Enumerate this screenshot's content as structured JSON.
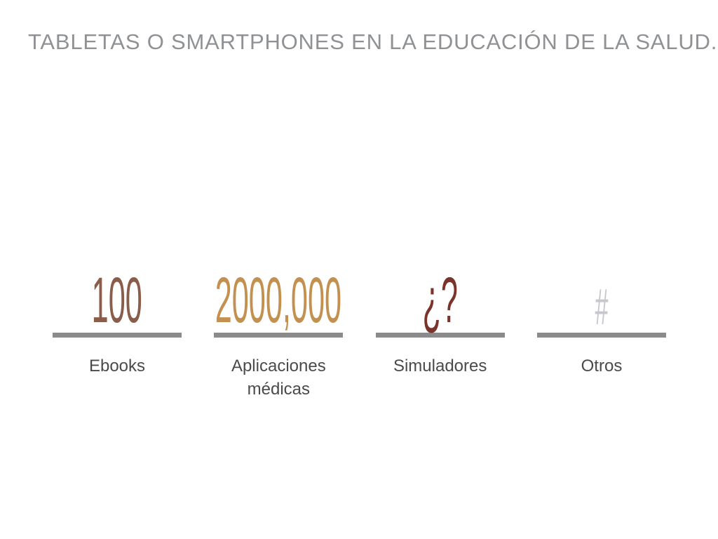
{
  "slide": {
    "title": "TABLETAS O SMARTPHONES EN LA EDUCACIÓN DE LA SALUD..",
    "colors": {
      "background": "#ffffff",
      "title": "#8f9194",
      "rule": "#8b8b8b",
      "label": "#4a4a4a"
    }
  },
  "stats": [
    {
      "value": "100",
      "label": "Ebooks",
      "color": "#8a5c4a"
    },
    {
      "value": "2000,000",
      "label": "Aplicaciones médicas",
      "color": "#c3904f"
    },
    {
      "value": "¿?",
      "label": "Simuladores",
      "color": "#7b342b"
    },
    {
      "value": "#",
      "label": "Otros",
      "color": "#c7c7ce"
    }
  ]
}
